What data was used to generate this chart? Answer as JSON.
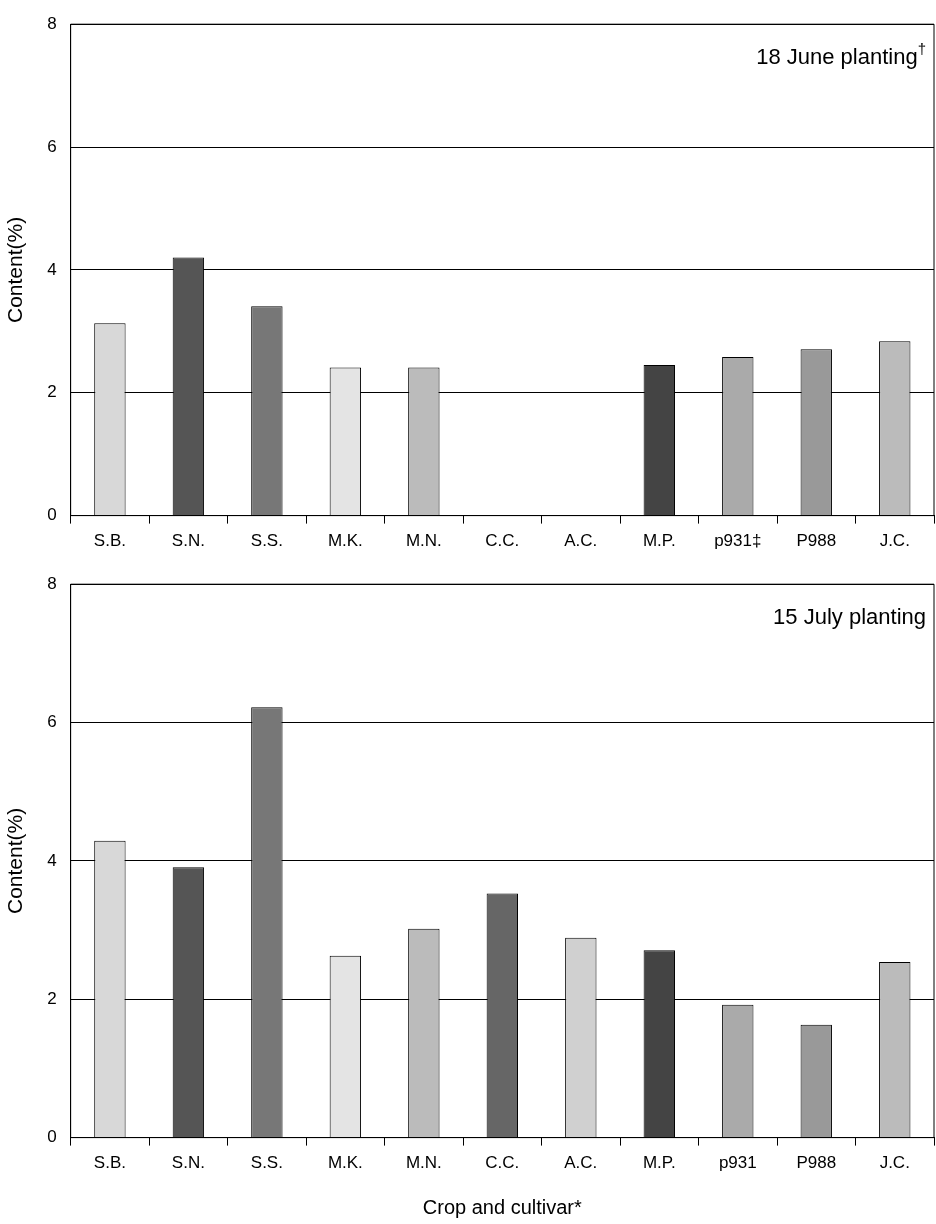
{
  "chart_data": [
    {
      "type": "bar",
      "annotations": [
        "18 June planting$^{†}$"
      ],
      "ylabel": "Content(%)",
      "categories": [
        "S.B.",
        "S.N.",
        "S.S.",
        "M.K.",
        "M.N.",
        "C.C.",
        "A.C.",
        "M.P.",
        "p931‡",
        "P988",
        "J.C."
      ],
      "values": [
        3.13,
        4.2,
        3.41,
        2.41,
        2.41,
        null,
        null,
        2.45,
        2.58,
        2.71,
        2.84
      ],
      "colors": [
        "#d8d8d8",
        "#555555",
        "#777777",
        "#e4e4e4",
        "#bbbbbb",
        "#666666",
        "#d0d0d0",
        "#444444",
        "#aaaaaa",
        "#999999",
        "#bbbbbb"
      ],
      "ylim": [
        0,
        8
      ],
      "yticks": [
        0,
        2,
        4,
        6,
        8
      ],
      "grid": "y",
      "legend": false
    },
    {
      "type": "bar",
      "annotations": [
        "15 July planting"
      ],
      "ylabel": "Content(%)",
      "xlabel": "Crop and cultivar*",
      "categories": [
        "S.B.",
        "S.N.",
        "S.S.",
        "M.K.",
        "M.N.",
        "C.C.",
        "A.C.",
        "M.P.",
        "p931",
        "P988",
        "J.C."
      ],
      "values": [
        4.29,
        3.91,
        6.22,
        2.63,
        3.02,
        3.53,
        2.89,
        2.71,
        1.92,
        1.63,
        2.54
      ],
      "colors": [
        "#d8d8d8",
        "#555555",
        "#777777",
        "#e4e4e4",
        "#bbbbbb",
        "#666666",
        "#d0d0d0",
        "#444444",
        "#aaaaaa",
        "#999999",
        "#bbbbbb"
      ],
      "ylim": [
        0,
        8
      ],
      "yticks": [
        0,
        2,
        4,
        6,
        8
      ],
      "grid": "y",
      "legend": false
    }
  ]
}
